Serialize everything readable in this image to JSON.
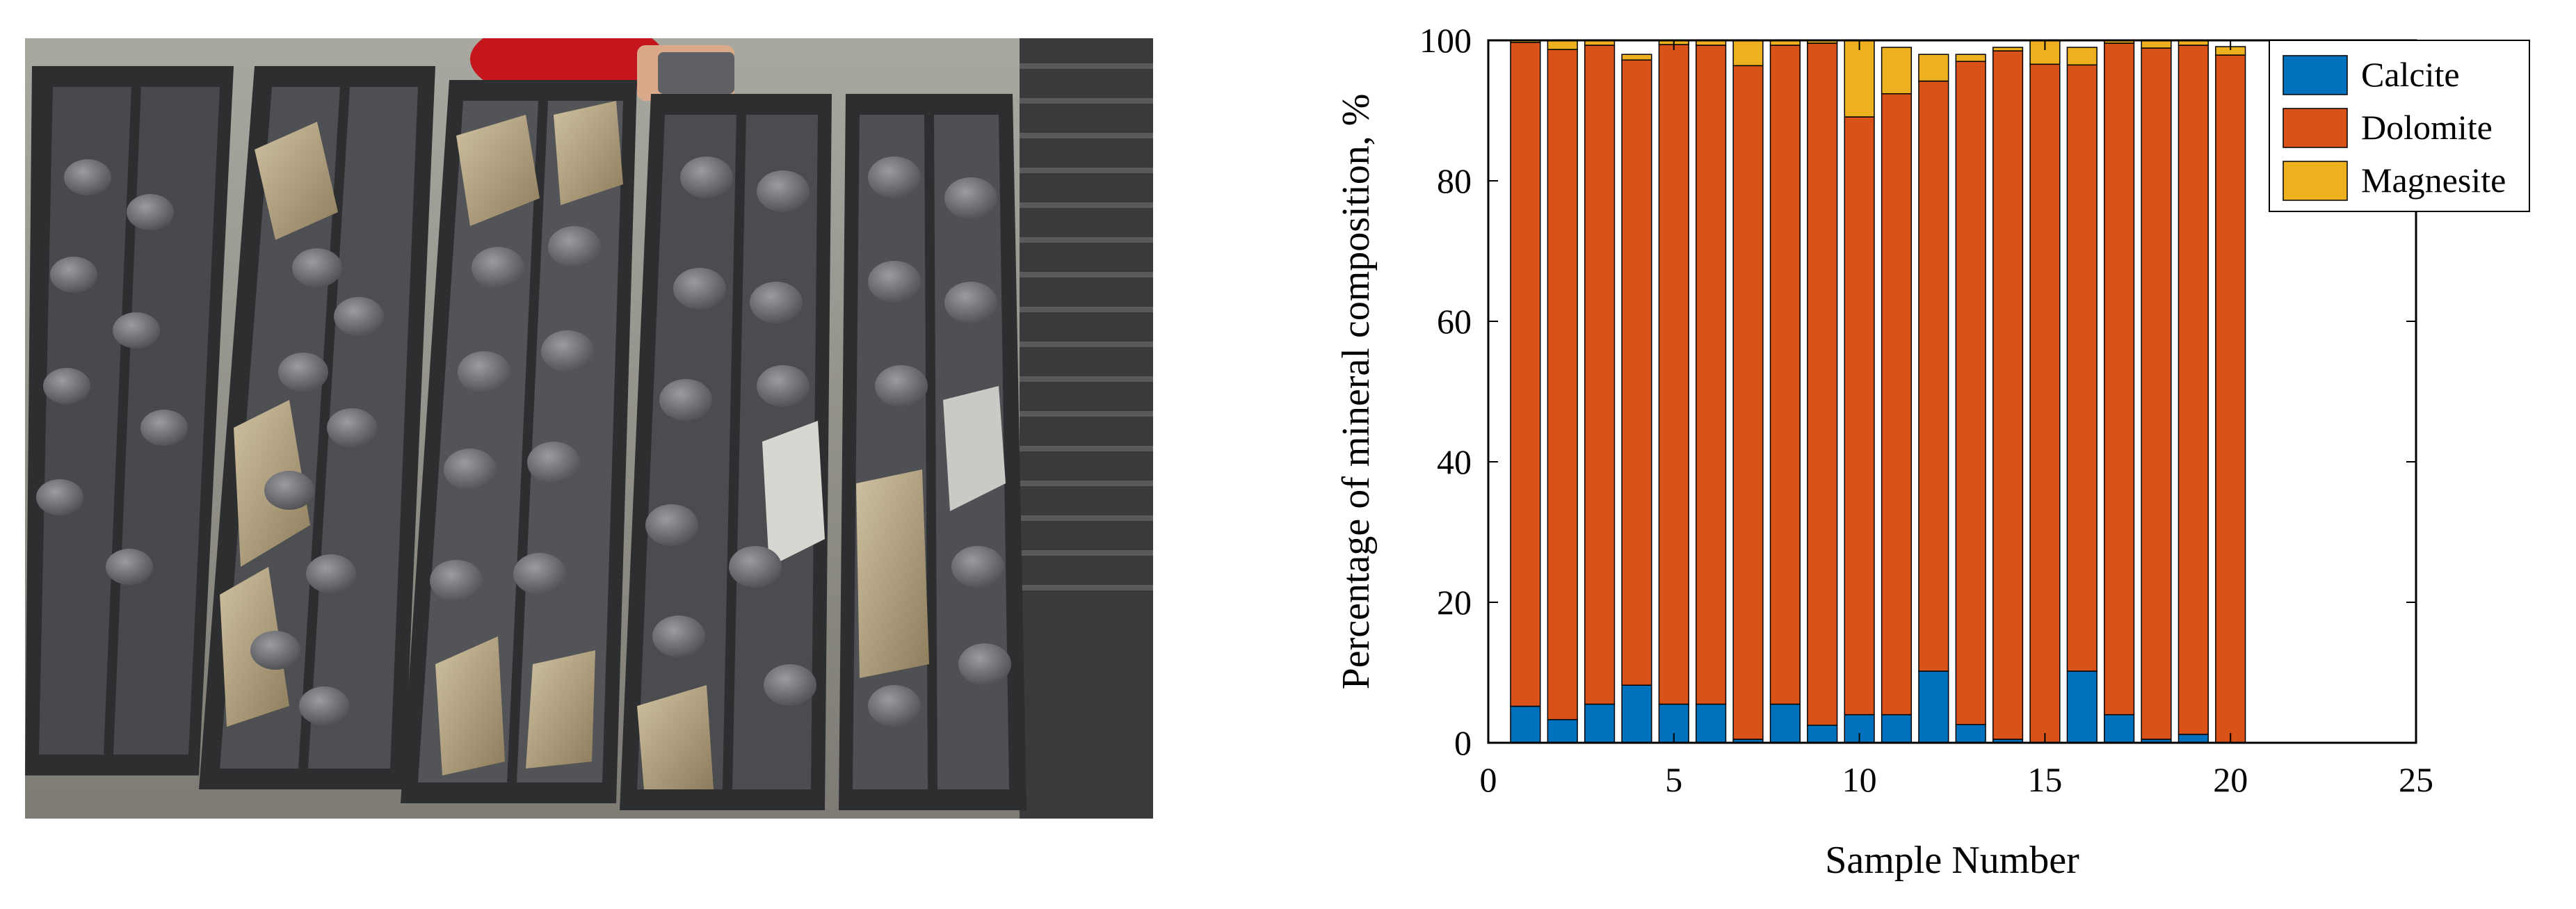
{
  "photo": {
    "subject": "rock core samples in trays",
    "tray_count": 5
  },
  "chart_data": {
    "type": "bar",
    "stacked": true,
    "title": "",
    "xlabel": "Sample Number",
    "ylabel": "Percentage of mineral composition, %",
    "xlim": [
      0,
      25
    ],
    "ylim": [
      0,
      100
    ],
    "xticks": [
      0,
      5,
      10,
      15,
      20,
      25
    ],
    "yticks": [
      0,
      20,
      40,
      60,
      80,
      100
    ],
    "grid": false,
    "legend_position": "top-right",
    "categories": [
      1,
      2,
      3,
      4,
      5,
      6,
      7,
      8,
      9,
      10,
      11,
      12,
      13,
      14,
      15,
      16,
      17,
      18,
      19,
      20
    ],
    "series": [
      {
        "name": "Calcite",
        "color": "#0072BD",
        "values": [
          5.2,
          3.3,
          5.5,
          8.2,
          5.5,
          5.5,
          0.5,
          5.5,
          2.5,
          4.0,
          4.0,
          10.2,
          2.6,
          0.5,
          0.0,
          10.2,
          4.0,
          0.5,
          1.2,
          0.0
        ]
      },
      {
        "name": "Dolomite",
        "color": "#D95319",
        "values": [
          94.5,
          95.4,
          93.8,
          89.0,
          93.9,
          93.8,
          95.9,
          93.8,
          97.1,
          85.1,
          88.4,
          84.0,
          94.4,
          98.0,
          96.6,
          86.3,
          95.6,
          98.4,
          98.1,
          97.9
        ]
      },
      {
        "name": "Magnesite",
        "color": "#EDB120",
        "values": [
          0.3,
          1.3,
          0.7,
          0.8,
          0.6,
          0.7,
          3.6,
          0.7,
          0.4,
          10.9,
          6.6,
          3.8,
          1.0,
          0.5,
          3.4,
          2.5,
          0.4,
          1.1,
          0.7,
          1.2
        ]
      }
    ]
  }
}
